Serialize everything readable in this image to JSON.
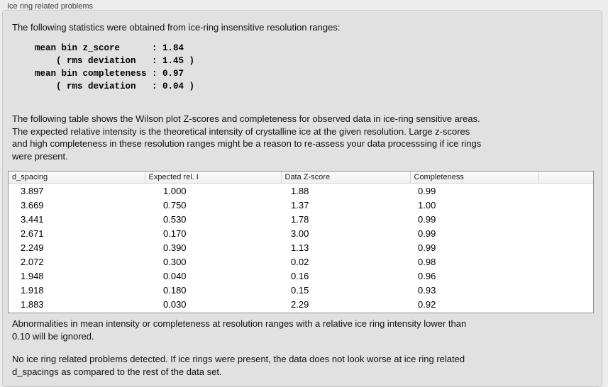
{
  "panel": {
    "title": "Ice ring related problems"
  },
  "statistics": {
    "intro": "The following statistics were obtained from ice-ring insensitive resolution ranges:",
    "block": "mean bin z_score      : 1.84\n    ( rms deviation   : 1.45 )\nmean bin completeness : 0.97\n    ( rms deviation   : 0.04 )",
    "mean_bin_z_score": "1.84",
    "z_score_rms_deviation": "1.45",
    "mean_bin_completeness": "0.97",
    "completeness_rms_deviation": "0.04"
  },
  "description": "The following table shows the Wilson plot Z-scores and completeness for observed data in ice-ring sensitive areas.\nThe expected relative intensity is the theoretical intensity of crystalline ice at the given resolution. Large z-scores\nand high completeness in these resolution ranges might be a reason to re-assess your data processsing if ice rings\nwere present.",
  "table": {
    "columns": [
      "d_spacing",
      "Expected rel. I",
      "Data Z-score",
      "Completeness",
      ""
    ],
    "rows": [
      [
        "3.897",
        "1.000",
        "1.88",
        "0.99"
      ],
      [
        "3.669",
        "0.750",
        "1.37",
        "1.00"
      ],
      [
        "3.441",
        "0.530",
        "1.78",
        "0.99"
      ],
      [
        "2.671",
        "0.170",
        "3.00",
        "0.99"
      ],
      [
        "2.249",
        "0.390",
        "1.13",
        "0.99"
      ],
      [
        "2.072",
        "0.300",
        "0.02",
        "0.98"
      ],
      [
        "1.948",
        "0.040",
        "0.16",
        "0.96"
      ],
      [
        "1.918",
        "0.180",
        "0.15",
        "0.93"
      ],
      [
        "1.883",
        "0.030",
        "2.29",
        "0.92"
      ]
    ]
  },
  "notes": {
    "ignore_note": "Abnormalities in mean intensity or completeness at resolution ranges with a relative ice ring intensity lower than\n0.10 will be ignored.",
    "conclusion": "No ice ring related problems detected. If ice rings were present, the data does not look worse at ice ring related\nd_spacings as compared to the rest of the data set."
  }
}
